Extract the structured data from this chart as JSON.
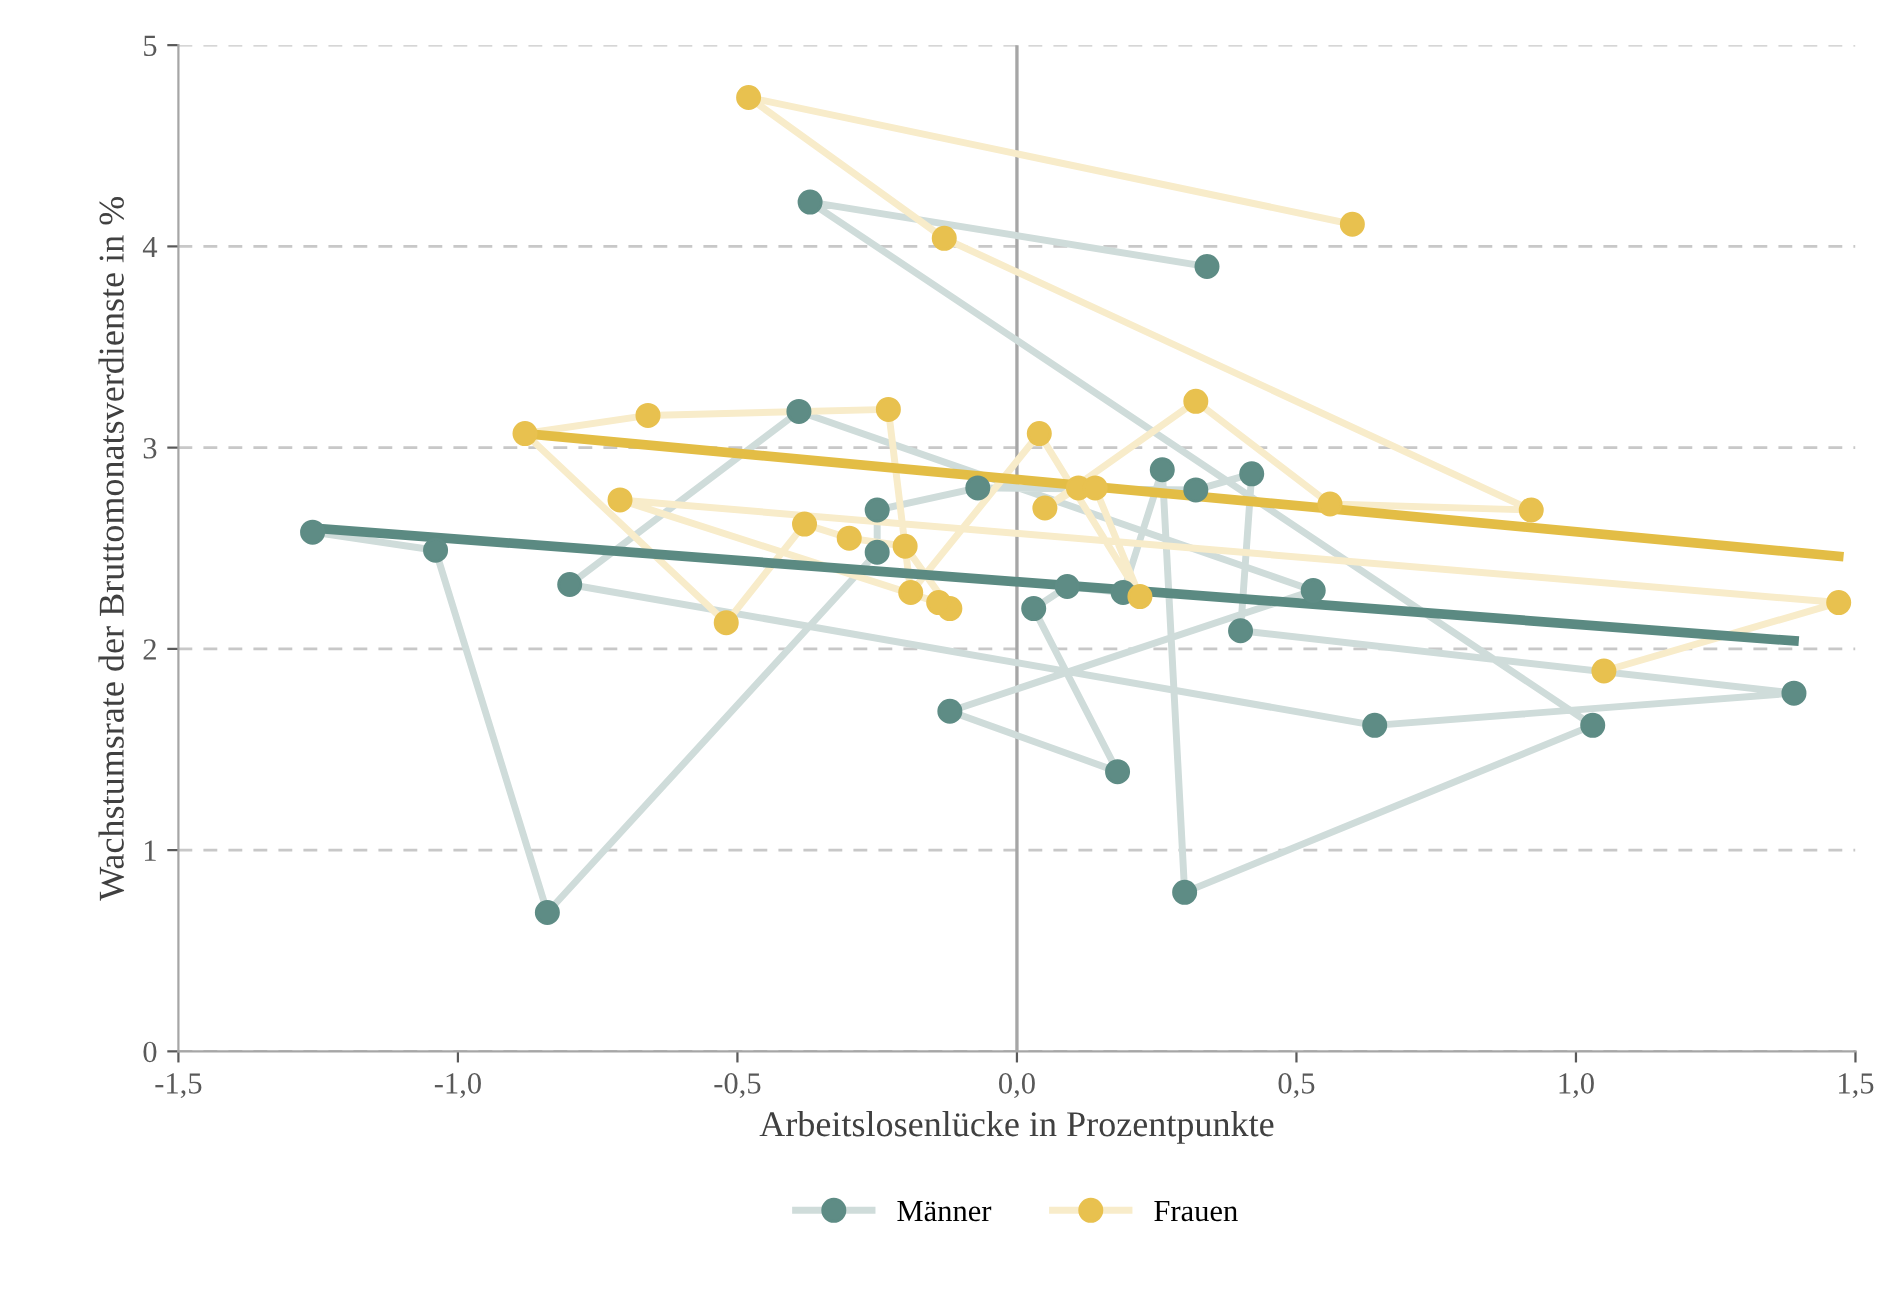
{
  "chart_data": {
    "type": "line",
    "xlabel": "Arbeitslosenlücke in Prozentpunkte",
    "ylabel": "Wachstumsrate der Bruttomonatsverdienste in %",
    "xlim": [
      -1.5,
      1.5
    ],
    "ylim": [
      0,
      5
    ],
    "xticks": [
      {
        "value": -1.5,
        "label": "-1,5"
      },
      {
        "value": -1.0,
        "label": "-1,0"
      },
      {
        "value": -0.5,
        "label": "-0,5"
      },
      {
        "value": 0,
        "label": "0,0"
      },
      {
        "value": 0.5,
        "label": "0,5"
      },
      {
        "value": 1.0,
        "label": "1,0"
      },
      {
        "value": 1.5,
        "label": "1,5"
      }
    ],
    "yticks": [
      0,
      1,
      2,
      3,
      4,
      5
    ],
    "grid": "y",
    "legend": "bottom",
    "ref_lines": [
      {
        "axis": "x",
        "value": 0,
        "color": "#a6a6a6",
        "line_style": "solid"
      }
    ],
    "series": [
      {
        "name": "Männer",
        "color": "#5e8c85",
        "marker": "circle",
        "x": [
          -1.26,
          -1.04,
          -0.84,
          -0.25,
          -0.25,
          -0.07,
          0.32,
          0.42,
          0.4,
          1.39,
          0.64,
          -0.8,
          -0.39,
          0.53,
          -0.12,
          0.18,
          0.03,
          0.09,
          0.19,
          0.26,
          0.3,
          1.03,
          -0.37,
          0.34
        ],
        "values": [
          2.58,
          2.49,
          0.69,
          2.48,
          2.69,
          2.8,
          2.79,
          2.87,
          2.09,
          1.78,
          1.62,
          2.32,
          3.18,
          2.29,
          1.69,
          1.39,
          2.2,
          2.31,
          2.28,
          2.89,
          0.79,
          1.62,
          4.22,
          3.9
        ]
      },
      {
        "name": "Frauen",
        "color": "#e8c14f",
        "marker": "circle",
        "x": [
          0.6,
          -0.48,
          -0.13,
          0.92,
          0.56,
          0.32,
          0.05,
          0.11,
          0.14,
          0.22,
          0.04,
          -0.19,
          -0.23,
          -0.66,
          -0.88,
          -0.52,
          -0.38,
          -0.3,
          -0.2,
          -0.12,
          -0.14,
          -0.71,
          1.47,
          1.05
        ],
        "values": [
          4.11,
          4.74,
          4.04,
          2.69,
          2.72,
          3.23,
          2.7,
          2.8,
          2.8,
          2.26,
          3.07,
          2.28,
          3.19,
          3.16,
          3.07,
          2.13,
          2.62,
          2.55,
          2.51,
          2.2,
          2.23,
          2.74,
          2.23,
          1.89
        ]
      },
      {
        "color": "#5b8a82",
        "marker": "none",
        "x": [
          -1.26,
          1.39
        ],
        "values": [
          2.6,
          2.04
        ]
      },
      {
        "color": "#e3bd45",
        "marker": "none",
        "x": [
          -0.88,
          1.47
        ],
        "values": [
          3.07,
          2.46
        ]
      }
    ]
  }
}
